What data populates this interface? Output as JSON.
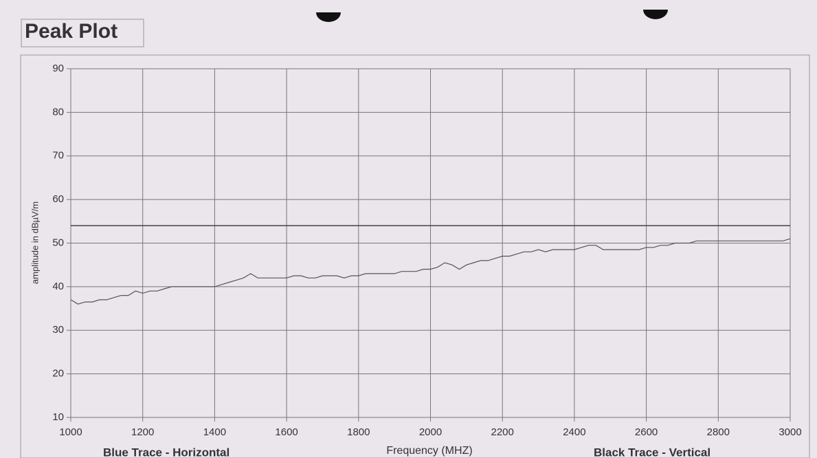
{
  "chart_data": {
    "type": "line",
    "title": "Peak Plot",
    "ylabel": "amplitude in dBµV/m",
    "xlabel": "Frequency (MHZ)",
    "annotations": [
      "Blue Trace - Horizontal",
      "Black Trace - Vertical"
    ],
    "x": [
      1000,
      1020,
      1040,
      1060,
      1080,
      1100,
      1120,
      1140,
      1160,
      1180,
      1200,
      1220,
      1240,
      1260,
      1280,
      1300,
      1320,
      1340,
      1360,
      1380,
      1400,
      1420,
      1440,
      1460,
      1480,
      1500,
      1520,
      1540,
      1560,
      1580,
      1600,
      1620,
      1640,
      1660,
      1680,
      1700,
      1720,
      1740,
      1760,
      1780,
      1800,
      1820,
      1840,
      1860,
      1880,
      1900,
      1920,
      1940,
      1960,
      1980,
      2000,
      2020,
      2040,
      2060,
      2080,
      2100,
      2120,
      2140,
      2160,
      2180,
      2200,
      2220,
      2240,
      2260,
      2280,
      2300,
      2320,
      2340,
      2360,
      2380,
      2400,
      2420,
      2440,
      2460,
      2480,
      2500,
      2520,
      2540,
      2560,
      2580,
      2600,
      2620,
      2640,
      2660,
      2680,
      2700,
      2720,
      2740,
      2760,
      2780,
      2800,
      2820,
      2840,
      2860,
      2880,
      2900,
      2920,
      2940,
      2960,
      2980,
      3000
    ],
    "values": [
      37,
      36,
      36.5,
      36.5,
      37,
      37,
      37.5,
      38,
      38,
      39,
      38.5,
      39,
      39,
      39.5,
      40,
      40,
      40,
      40,
      40,
      40,
      40,
      40.5,
      41,
      41.5,
      42,
      43,
      42,
      42,
      42,
      42,
      42,
      42.5,
      42.5,
      42,
      42,
      42.5,
      42.5,
      42.5,
      42,
      42.5,
      42.5,
      43,
      43,
      43,
      43,
      43,
      43.5,
      43.5,
      43.5,
      44,
      44,
      44.5,
      45.5,
      45,
      44,
      45,
      45.5,
      46,
      46,
      46.5,
      47,
      47,
      47.5,
      48,
      48,
      48.5,
      48,
      48.5,
      48.5,
      48.5,
      48.5,
      49,
      49.5,
      49.5,
      48.5,
      48.5,
      48.5,
      48.5,
      48.5,
      48.5,
      49,
      49,
      49.5,
      49.5,
      50,
      50,
      50,
      50.5,
      50.5,
      50.5,
      50.5,
      50.5,
      50.5,
      50.5,
      50.5,
      50.5,
      50.5,
      50.5,
      50.5,
      50.5,
      51
    ],
    "color": "#555555",
    "limit_line": 54,
    "xlim": [
      1000,
      3000
    ],
    "xticks": [
      1000,
      1200,
      1400,
      1600,
      1800,
      2000,
      2200,
      2400,
      2600,
      2800,
      3000
    ],
    "ylim": [
      10,
      90
    ],
    "yticks": [
      10,
      20,
      30,
      40,
      50,
      60,
      70,
      80,
      90
    ],
    "grid": true
  }
}
